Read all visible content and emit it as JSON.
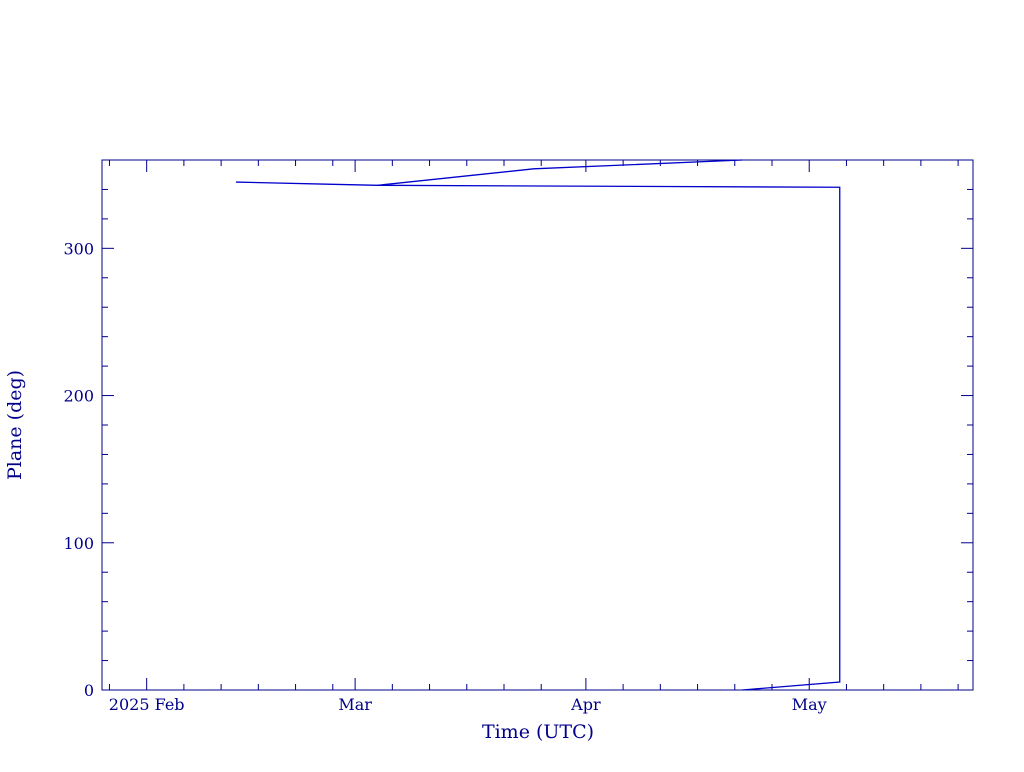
{
  "chart_data": {
    "type": "line",
    "xlabel": "Time (UTC)",
    "ylabel": "Plane (deg)",
    "xlim": [
      -6,
      111
    ],
    "ylim": [
      0,
      360
    ],
    "xticks": [
      {
        "value": 0,
        "label": "2025 Feb"
      },
      {
        "value": 28,
        "label": "Mar"
      },
      {
        "value": 59,
        "label": "Apr"
      },
      {
        "value": 89,
        "label": "May"
      }
    ],
    "xminorticks": [
      -5,
      5,
      10,
      15,
      20,
      25,
      33,
      38,
      43,
      48,
      53,
      64,
      69,
      74,
      79,
      84,
      94,
      99,
      104,
      109
    ],
    "yticks": [
      0,
      100,
      200,
      300
    ],
    "yminorticks": [
      20,
      40,
      60,
      80,
      120,
      140,
      160,
      180,
      220,
      240,
      260,
      280,
      320,
      340
    ],
    "series": [
      {
        "color": "#0000cc",
        "x": [
          12,
          25,
          31,
          52,
          80,
          null,
          80,
          93.1,
          93.1,
          31
        ],
        "values": [
          345,
          343.5,
          342.8,
          354,
          360,
          null,
          0,
          5.4,
          341.5,
          342.8
        ]
      }
    ]
  }
}
